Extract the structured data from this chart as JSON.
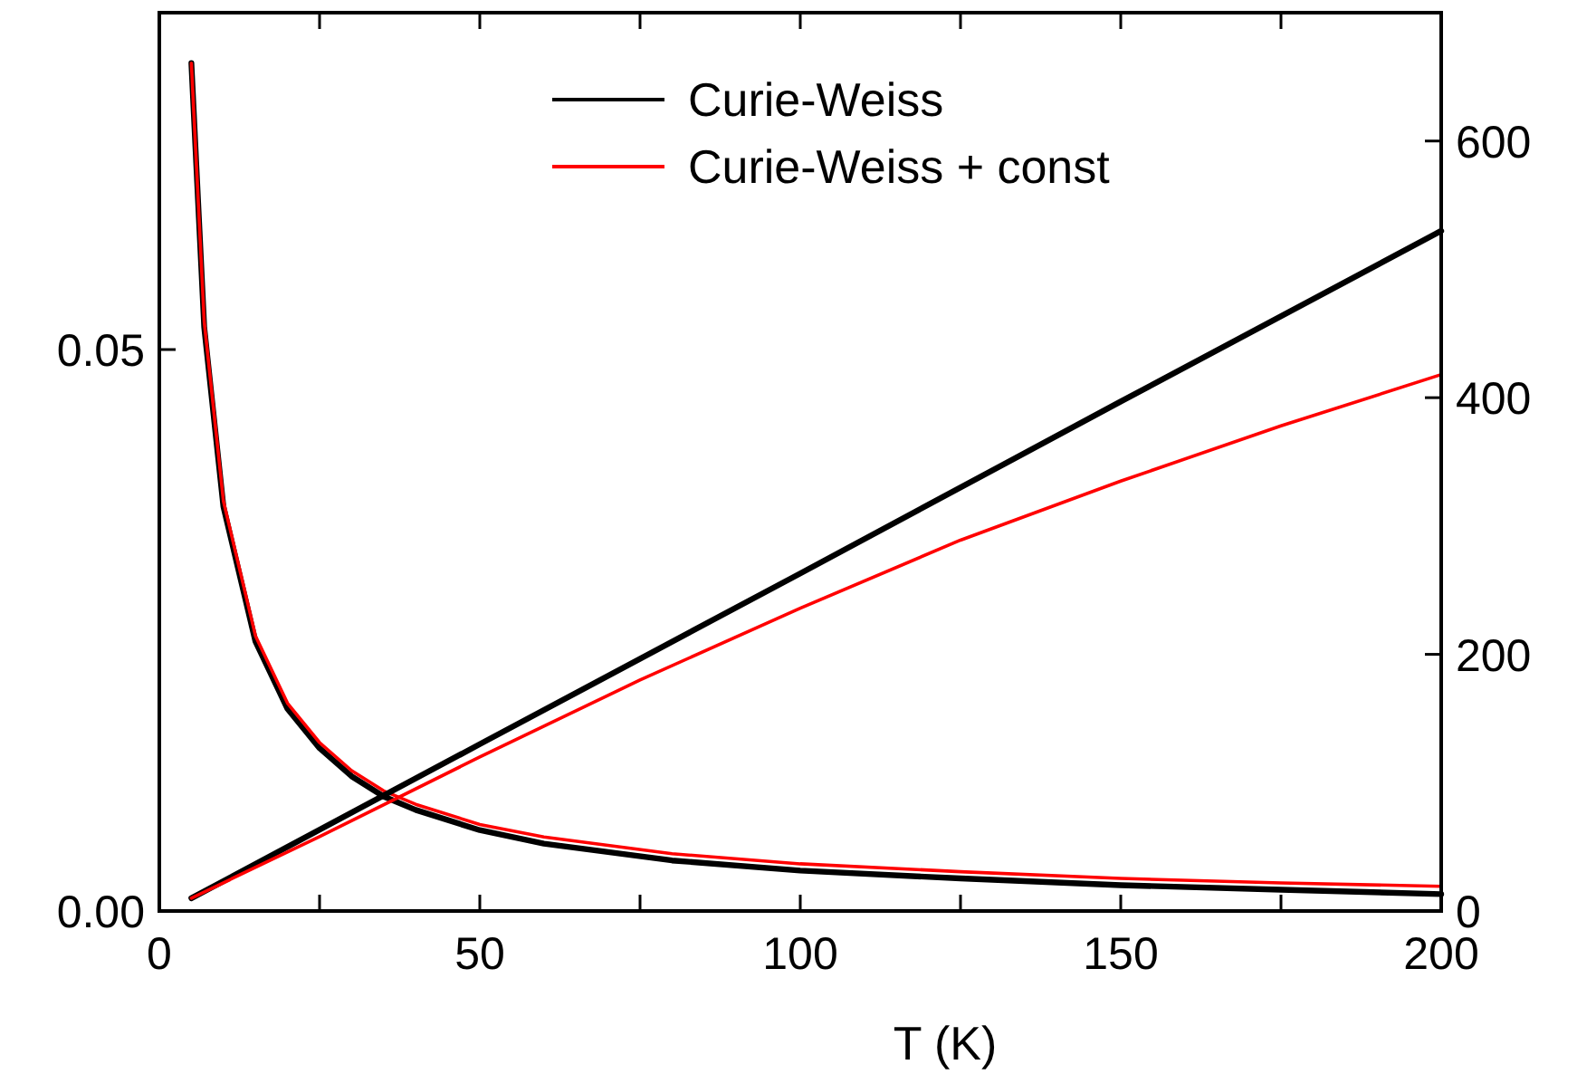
{
  "chart_data": {
    "type": "line",
    "xlabel": "T (K)",
    "xlim": [
      0,
      200
    ],
    "xticks": [
      0,
      {
        "value": 25,
        "label": null
      },
      50,
      {
        "value": 75,
        "label": null
      },
      100,
      {
        "value": 125,
        "label": null
      },
      150,
      {
        "value": 175,
        "label": null
      },
      200
    ],
    "ylim": [
      0,
      0.08
    ],
    "yticks": [
      {
        "value": 0,
        "label": "0.00"
      },
      {
        "value": 0.05,
        "label": "0.05"
      }
    ],
    "y2lim": [
      0,
      700
    ],
    "y2ticks": [
      0,
      200,
      400,
      600
    ],
    "grid": false,
    "legend": "top",
    "line_style": "solid",
    "marker": "none",
    "series": [
      {
        "name": "Curie-Weiss",
        "color": "#000000",
        "x": [
          5,
          7,
          10,
          15,
          20,
          25,
          30,
          35,
          40,
          50,
          60,
          80,
          100,
          125,
          150,
          175,
          200
        ],
        "values": [
          0.0755,
          0.052,
          0.036,
          0.024,
          0.018,
          0.0145,
          0.012,
          0.0102,
          0.009,
          0.0072,
          0.006,
          0.0045,
          0.0036,
          0.0029,
          0.0023,
          0.0019,
          0.0015
        ]
      },
      {
        "name": "Curie-Weiss + const",
        "color": "#ff0000",
        "x": [
          5,
          7,
          10,
          15,
          20,
          25,
          30,
          35,
          40,
          50,
          60,
          80,
          100,
          125,
          150,
          175,
          200
        ],
        "values": [
          0.0755,
          0.0525,
          0.0365,
          0.0245,
          0.0185,
          0.015,
          0.0125,
          0.0107,
          0.0095,
          0.0077,
          0.0066,
          0.0051,
          0.0042,
          0.0035,
          0.0029,
          0.0025,
          0.0022
        ]
      },
      {
        "color": "#000000",
        "axis": "y2",
        "x": [
          5,
          50,
          100,
          150,
          200
        ],
        "values": [
          10,
          130,
          263,
          397,
          530
        ]
      },
      {
        "color": "#ff0000",
        "axis": "y2",
        "x": [
          5,
          25,
          50,
          75,
          100,
          125,
          150,
          175,
          200
        ],
        "values": [
          10,
          58,
          120,
          180,
          236,
          289,
          335,
          378,
          418
        ]
      }
    ]
  }
}
